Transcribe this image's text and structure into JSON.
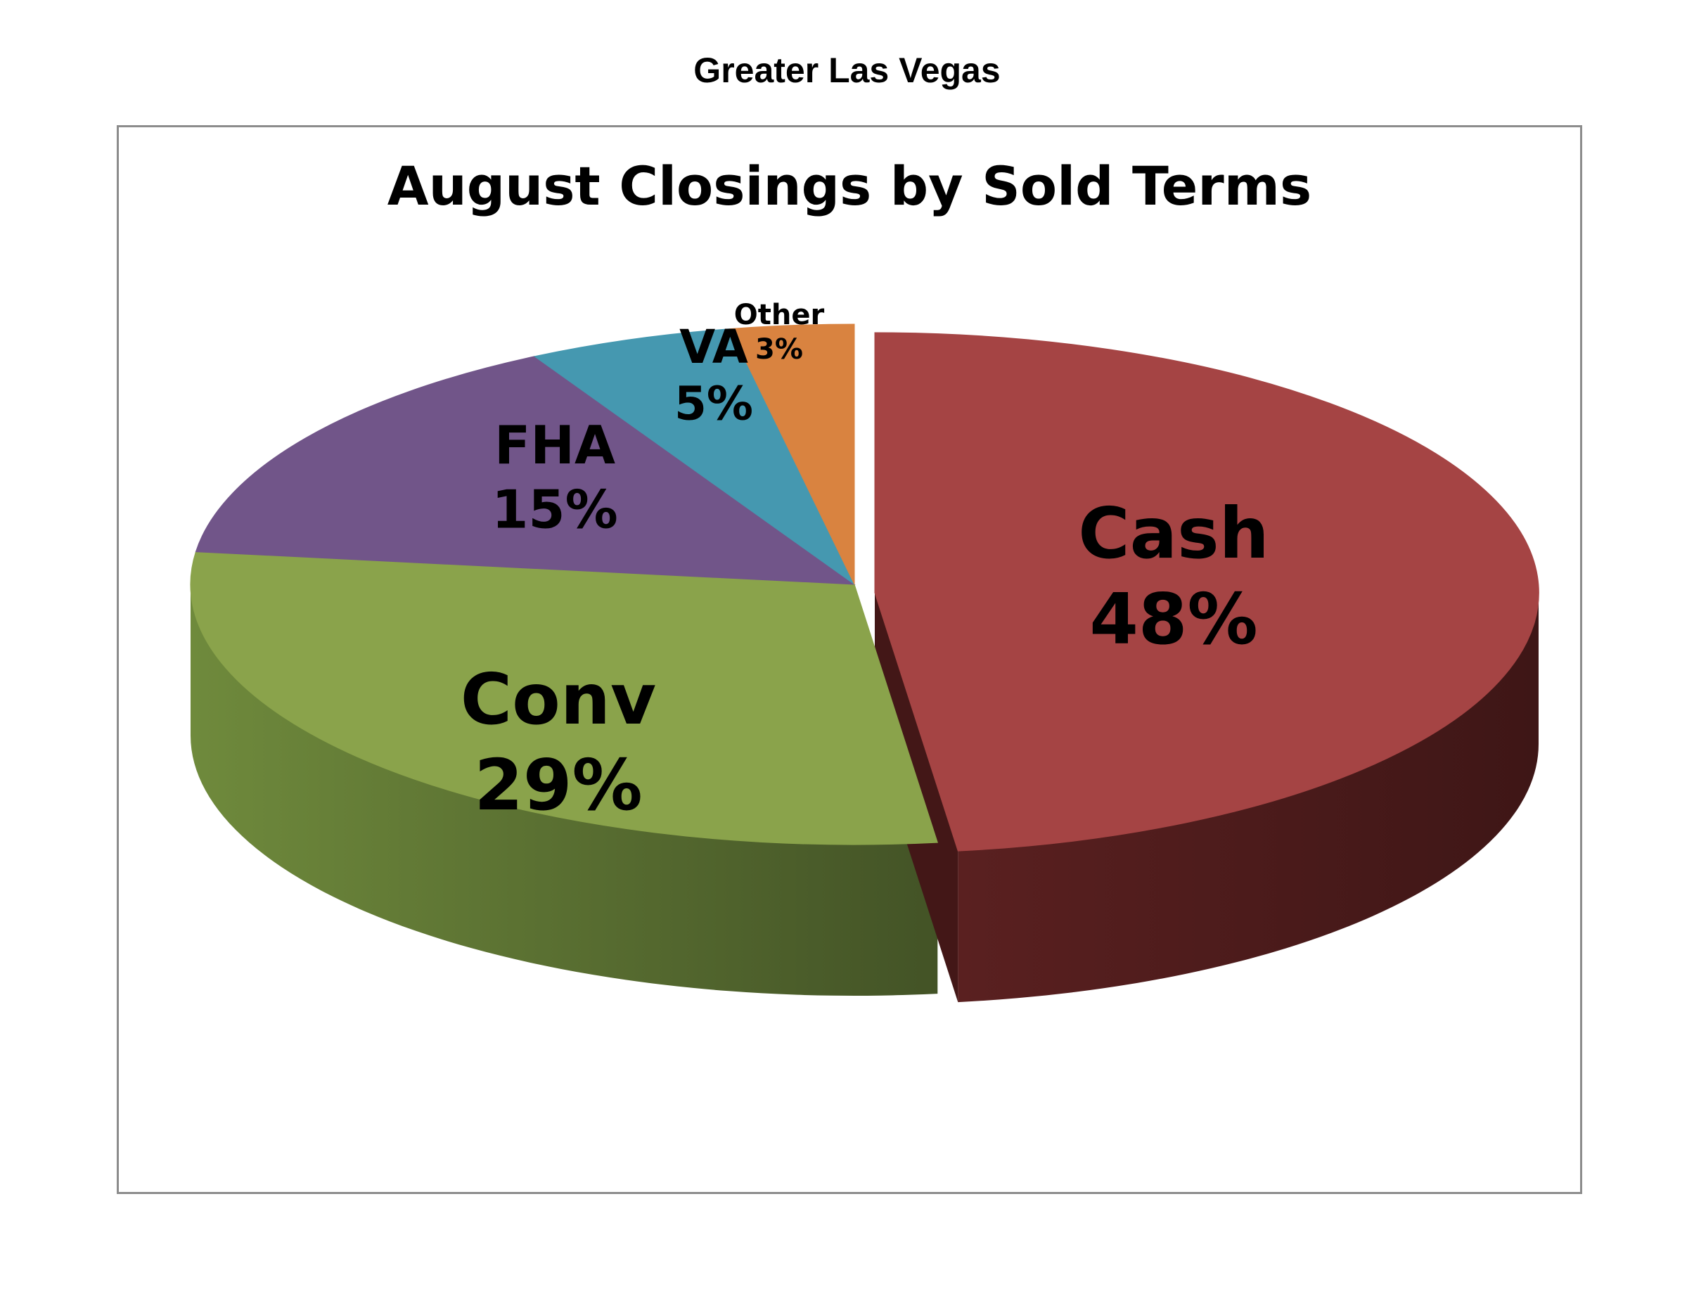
{
  "header": {
    "title": "Greater Las Vegas"
  },
  "chart_data": {
    "type": "pie",
    "title": "August Closings by Sold Terms",
    "style": "3d-exploded",
    "series": [
      {
        "label": "Cash",
        "value": 48,
        "display": "48%",
        "color": "#a54444",
        "side_color": "#4e1c1c"
      },
      {
        "label": "Conv",
        "value": 29,
        "display": "29%",
        "color": "#8aa34b",
        "side_color": "#5b7232"
      },
      {
        "label": "FHA",
        "value": 15,
        "display": "15%",
        "color": "#715589",
        "side_color": "#4a3659"
      },
      {
        "label": "VA",
        "value": 5,
        "display": "5%",
        "color": "#4598b0",
        "side_color": "#2c6272"
      },
      {
        "label": "Other",
        "value": 3,
        "display": "3%",
        "color": "#d98340",
        "side_color": "#8a5127"
      }
    ]
  }
}
